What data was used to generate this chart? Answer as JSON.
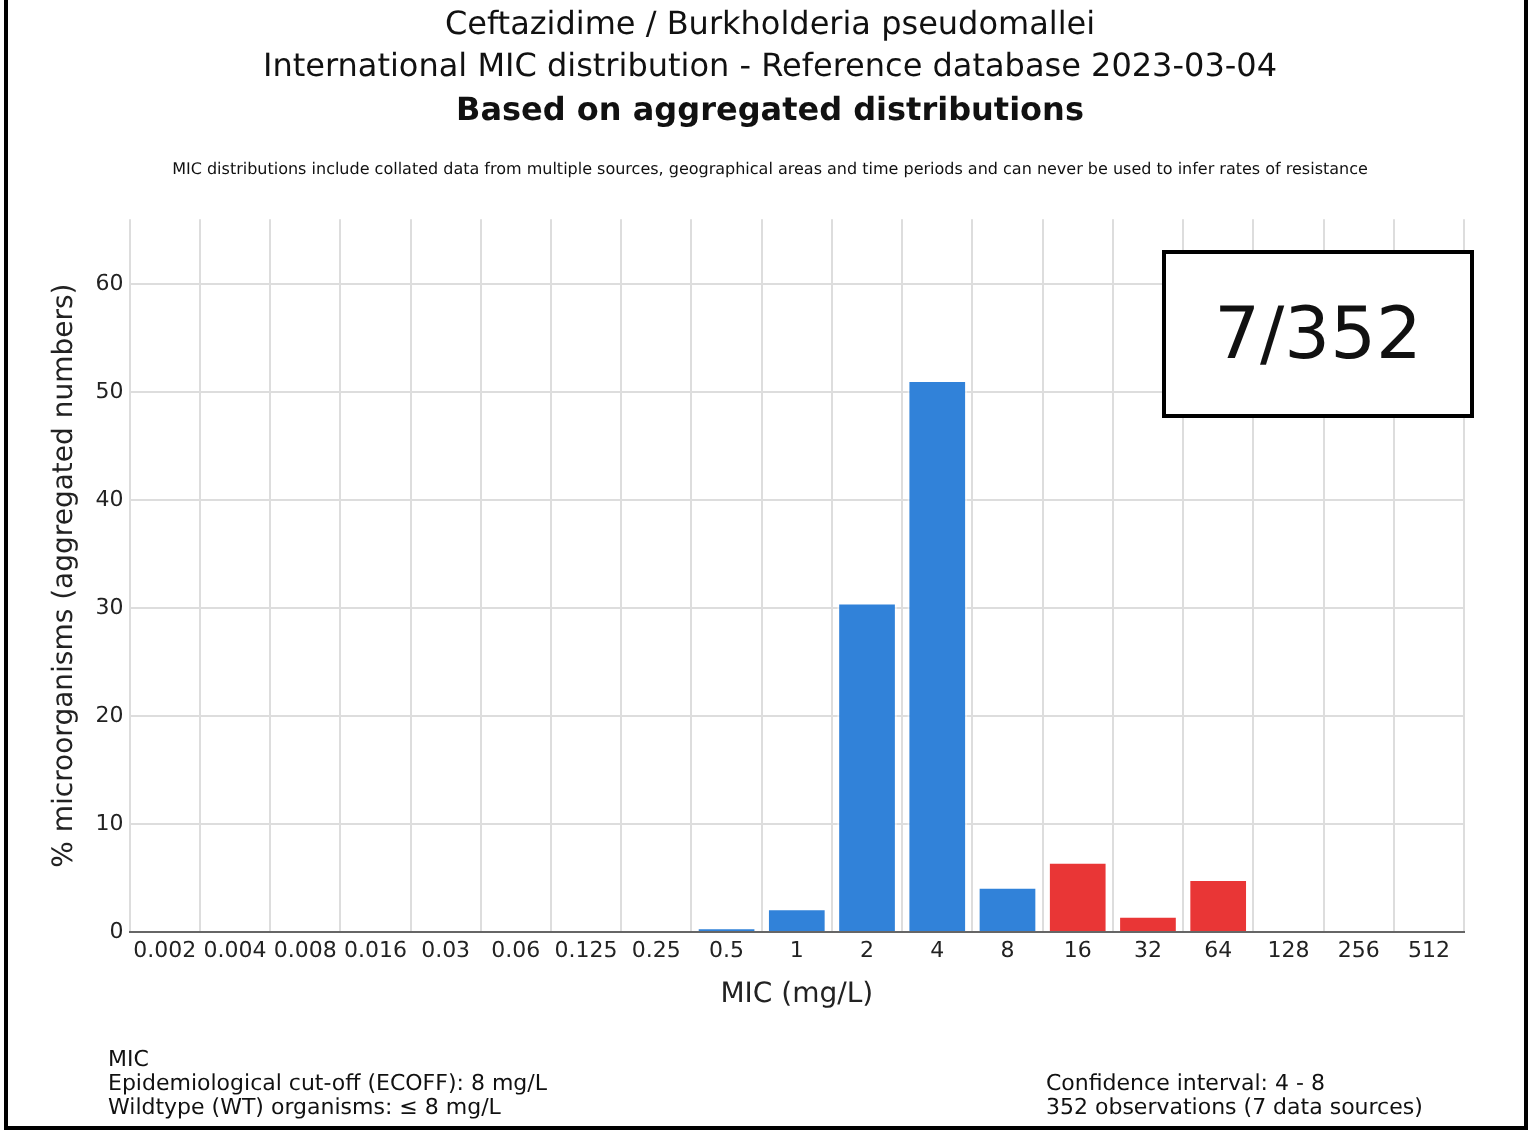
{
  "chart_data": {
    "type": "bar",
    "title": "Ceftazidime / Burkholderia pseudomallei",
    "subtitle": "International MIC distribution - Reference database 2023-03-04",
    "xlabel": "MIC (mg/L)",
    "ylabel": "% microorganisms (aggregated numbers)",
    "categories": [
      "0.002",
      "0.004",
      "0.008",
      "0.016",
      "0.03",
      "0.06",
      "0.125",
      "0.25",
      "0.5",
      "1",
      "2",
      "4",
      "8",
      "16",
      "32",
      "64",
      "128",
      "256",
      "512"
    ],
    "values": [
      0,
      0,
      0,
      0,
      0,
      0,
      0,
      0,
      0.4,
      2.2,
      30.5,
      51.1,
      4.2,
      6.5,
      1.5,
      4.9,
      0,
      0,
      0
    ],
    "colors": [
      "#3182d9",
      "#3182d9",
      "#3182d9",
      "#3182d9",
      "#3182d9",
      "#3182d9",
      "#3182d9",
      "#3182d9",
      "#3182d9",
      "#3182d9",
      "#3182d9",
      "#3182d9",
      "#3182d9",
      "#e93636",
      "#e93636",
      "#e93636",
      "#e93636",
      "#e93636",
      "#e93636"
    ],
    "ylim": [
      0,
      66
    ],
    "yticks": [
      0,
      10,
      20,
      30,
      40,
      50,
      60
    ],
    "grid": true,
    "legend": false,
    "annotations": [
      "Based on aggregated distributions",
      "MIC distributions include collated data from multiple sources, geographical areas and time periods and can never be used to infer rates of resistance",
      "7/352",
      "MIC",
      "Epidemiological cut-off (ECOFF): 8 mg/L",
      "Wildtype (WT) organisms: ≤ 8 mg/L",
      "Confidence interval: 4 - 8",
      "352 observations (7 data sources)"
    ]
  }
}
